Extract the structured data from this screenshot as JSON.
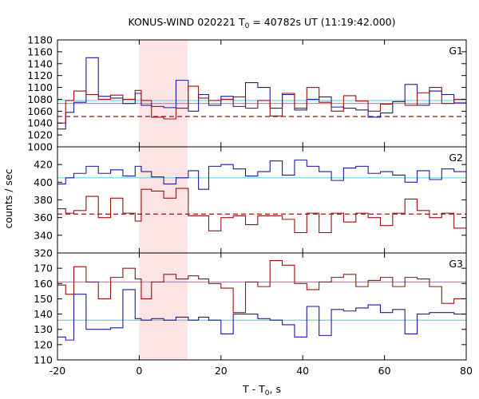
{
  "chart_data": [
    {
      "panel": "G1",
      "type": "line",
      "title_parts": [
        "KONUS-WIND 020221 T",
        "0",
        " = 40782s UT (11:19:42.000)"
      ],
      "panel_label": "G1",
      "xlim": [
        -20,
        80
      ],
      "ylim": [
        1000,
        1180
      ],
      "yticks": [
        1000,
        1020,
        1040,
        1060,
        1080,
        1100,
        1120,
        1140,
        1160,
        1180
      ],
      "highlight": {
        "x_start": 0,
        "x_end": 11.8,
        "color": "#fde4e4"
      },
      "bin_edges": [
        -20,
        -18,
        -16,
        -13,
        -10,
        -7,
        -4,
        -1,
        0.5,
        3,
        6,
        9,
        12,
        14.5,
        17,
        20,
        23,
        26,
        29,
        32,
        35,
        38,
        41,
        44,
        47,
        50,
        53,
        56,
        59,
        62,
        65,
        68,
        71,
        74,
        77,
        80
      ],
      "series": [
        {
          "color": "#1a1aa0",
          "style": "step",
          "values": [
            1030,
            1058,
            1075,
            1150,
            1085,
            1082,
            1073,
            1090,
            1070,
            1068,
            1066,
            1112,
            1060,
            1088,
            1070,
            1085,
            1068,
            1108,
            1100,
            1065,
            1088,
            1062,
            1080,
            1084,
            1067,
            1065,
            1062,
            1050,
            1057,
            1076,
            1105,
            1070,
            1094,
            1088,
            1074
          ]
        },
        {
          "color": "#9a1010",
          "style": "step",
          "values": [
            1040,
            1078,
            1094,
            1088,
            1080,
            1087,
            1080,
            1095,
            1078,
            1050,
            1047,
            1065,
            1102,
            1082,
            1078,
            1080,
            1084,
            1065,
            1078,
            1052,
            1090,
            1065,
            1100,
            1075,
            1060,
            1086,
            1077,
            1060,
            1072,
            1076,
            1070,
            1091,
            1100,
            1073,
            1080
          ]
        }
      ],
      "reference_lines": [
        {
          "value": 1078,
          "color": "#6ad0e0",
          "style": "solid"
        },
        {
          "value": 1073,
          "color": "#e070e0",
          "style": "solid"
        },
        {
          "value": 1051,
          "color": "#9a1010",
          "style": "dashed"
        }
      ]
    },
    {
      "panel": "G2",
      "type": "line",
      "panel_label": "G2",
      "ylabel": "counts / sec",
      "xlim": [
        -20,
        80
      ],
      "ylim": [
        320,
        440
      ],
      "yticks": [
        320,
        340,
        360,
        380,
        400,
        420
      ],
      "highlight": {
        "x_start": 0,
        "x_end": 11.8,
        "color": "#fde4e4"
      },
      "bin_edges": [
        -20,
        -18,
        -16,
        -13,
        -10,
        -7,
        -4,
        -1,
        0.5,
        3,
        6,
        9,
        12,
        14.5,
        17,
        20,
        23,
        26,
        29,
        32,
        35,
        38,
        41,
        44,
        47,
        50,
        53,
        56,
        59,
        62,
        65,
        68,
        71,
        74,
        77,
        80
      ],
      "series": [
        {
          "color": "#1a1aa0",
          "style": "step",
          "values": [
            398,
            405,
            410,
            418,
            410,
            414,
            407,
            418,
            412,
            406,
            398,
            405,
            413,
            392,
            418,
            420,
            415,
            407,
            412,
            424,
            408,
            425,
            418,
            412,
            402,
            416,
            418,
            410,
            412,
            408,
            400,
            413,
            403,
            415,
            412
          ]
        },
        {
          "color": "#9a1010",
          "style": "step",
          "values": [
            370,
            365,
            368,
            384,
            360,
            382,
            365,
            356,
            392,
            390,
            382,
            393,
            362,
            362,
            345,
            360,
            362,
            352,
            362,
            362,
            358,
            343,
            365,
            343,
            365,
            355,
            365,
            360,
            351,
            365,
            381,
            368,
            360,
            365,
            348
          ]
        }
      ],
      "reference_lines": [
        {
          "value": 405,
          "color": "#6ad0e0",
          "style": "solid"
        },
        {
          "value": 364,
          "color": "#9a1010",
          "style": "dashed"
        }
      ]
    },
    {
      "panel": "G3",
      "type": "line",
      "panel_label": "G3",
      "xlabel_parts": [
        "T - T",
        "0",
        ", s"
      ],
      "xlim": [
        -20,
        80
      ],
      "ylim": [
        110,
        180
      ],
      "yticks": [
        110,
        120,
        130,
        140,
        150,
        160,
        170
      ],
      "xticks": [
        -20,
        0,
        20,
        40,
        60,
        80
      ],
      "highlight": {
        "x_start": 0,
        "x_end": 11.8,
        "color": "#fde4e4"
      },
      "bin_edges": [
        -20,
        -18,
        -16,
        -13,
        -10,
        -7,
        -4,
        -1,
        0.5,
        3,
        6,
        9,
        12,
        14.5,
        17,
        20,
        23,
        26,
        29,
        32,
        35,
        38,
        41,
        44,
        47,
        50,
        53,
        56,
        59,
        62,
        65,
        68,
        71,
        74,
        77,
        80
      ],
      "series": [
        {
          "color": "#1a1aa0",
          "style": "step",
          "values": [
            125,
            123,
            153,
            130,
            130,
            131,
            156,
            137,
            136,
            137,
            136,
            138,
            136,
            138,
            136,
            127,
            140,
            140,
            137,
            136,
            133,
            125,
            145,
            126,
            143,
            142,
            144,
            146,
            141,
            143,
            127,
            140,
            141,
            141,
            140
          ]
        },
        {
          "color": "#9a1010",
          "style": "step",
          "values": [
            159,
            153,
            171,
            161,
            150,
            164,
            170,
            163,
            150,
            161,
            166,
            163,
            165,
            163,
            160,
            157,
            141,
            161,
            158,
            175,
            172,
            160,
            156,
            161,
            164,
            166,
            158,
            162,
            164,
            158,
            164,
            163,
            158,
            147,
            150
          ]
        }
      ],
      "reference_lines": [
        {
          "value": 161,
          "color": "#e070e0",
          "style": "solid"
        },
        {
          "value": 136,
          "color": "#6ad0e0",
          "style": "solid"
        }
      ]
    }
  ]
}
